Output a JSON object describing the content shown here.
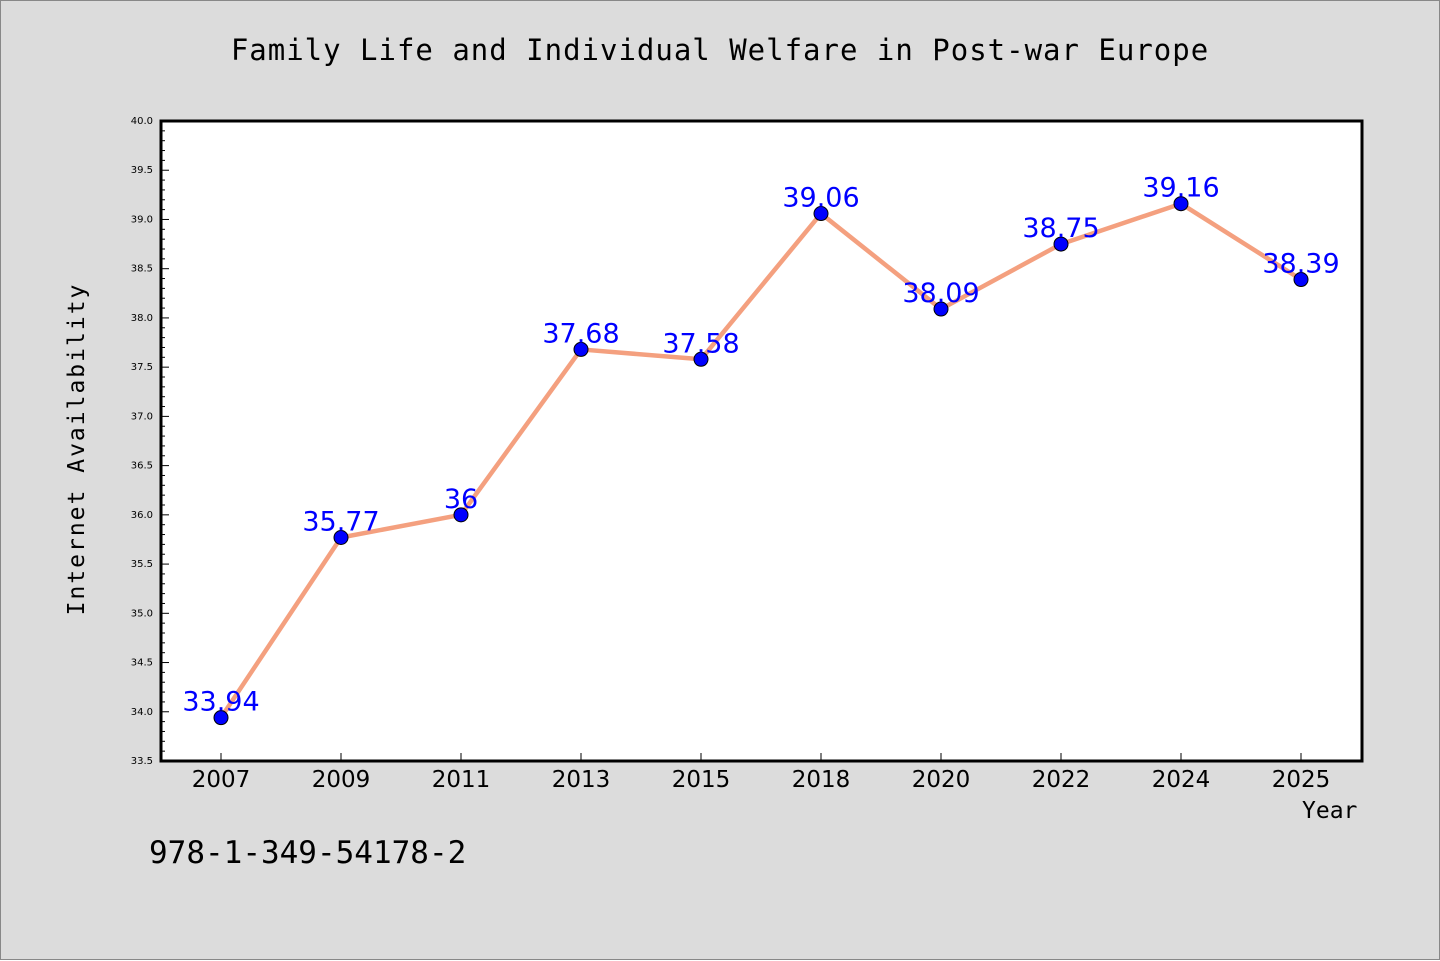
{
  "chart_data": {
    "type": "line",
    "title": "Family Life and Individual Welfare in Post-war Europe",
    "xlabel": "Year",
    "ylabel": "Internet Availability",
    "categories": [
      "2007",
      "2009",
      "2011",
      "2013",
      "2015",
      "2018",
      "2020",
      "2022",
      "2024",
      "2025"
    ],
    "series": [
      {
        "values": [
          33.94,
          35.77,
          36,
          37.68,
          37.58,
          39.06,
          38.09,
          38.75,
          39.16,
          38.39
        ]
      }
    ],
    "data_labels": [
      "33.94",
      "35.77",
      "36",
      "37.68",
      "37.58",
      "39.06",
      "38.09",
      "38.75",
      "39.16",
      "38.39"
    ],
    "ylim": [
      33.5,
      40.0
    ],
    "yticks": [
      "33.5",
      "34.0",
      "34.5",
      "35.0",
      "35.5",
      "36.0",
      "36.5",
      "37.0",
      "37.5",
      "38.0",
      "38.5",
      "39.0",
      "39.5",
      "40.0"
    ],
    "grid": false,
    "legend": "none",
    "colors": {
      "line": "#f4a07f",
      "marker": "#0000ff",
      "marker_edge": "#000000",
      "data_label": "#0000ff",
      "background": "#dcdcdc",
      "plot_area": "#ffffff"
    }
  },
  "footer": {
    "id_text": "978-1-349-54178-2"
  }
}
